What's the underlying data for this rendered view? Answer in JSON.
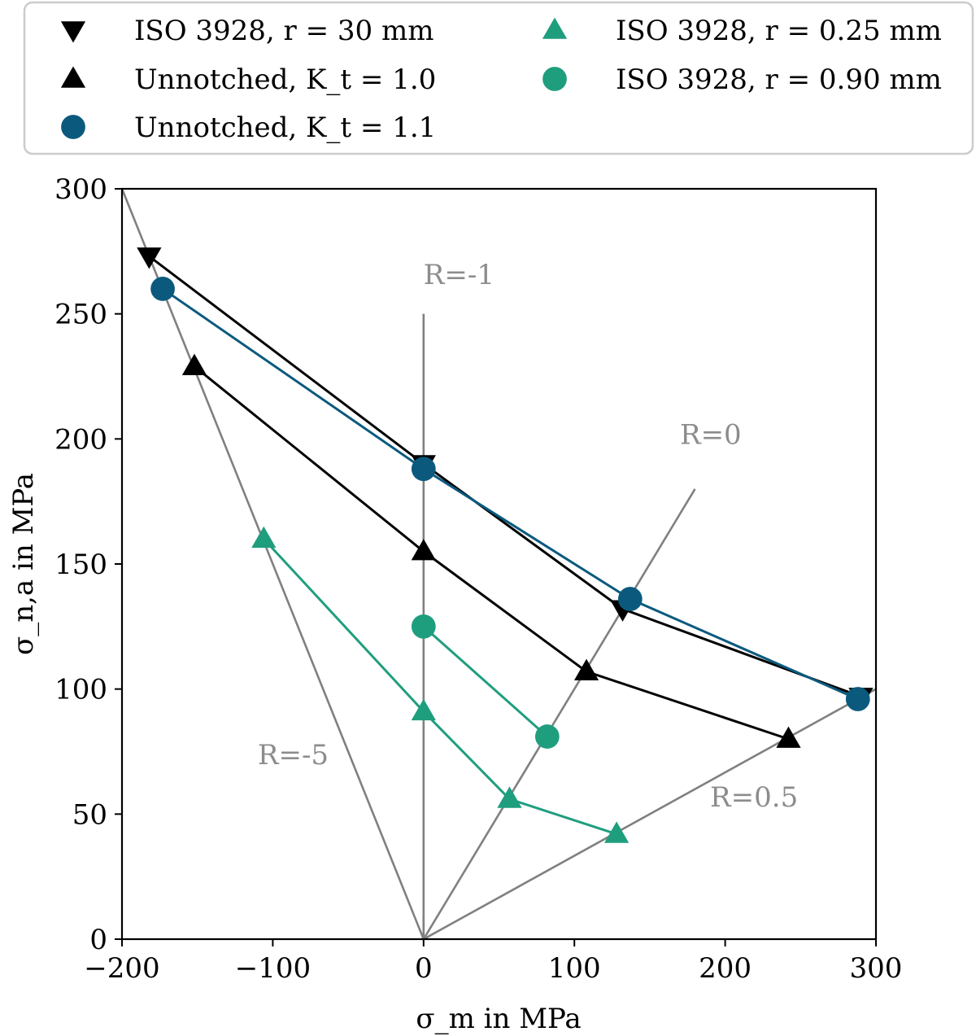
{
  "chart_data": {
    "type": "line",
    "xlabel": "σ_m in MPa",
    "ylabel": "σ_n,a in MPa",
    "xlim": [
      -200,
      300
    ],
    "ylim": [
      0,
      300
    ],
    "xticks": [
      -200,
      -100,
      0,
      100,
      200,
      300
    ],
    "yticks": [
      0,
      50,
      100,
      150,
      200,
      250,
      300
    ],
    "grid": false,
    "legend_position": "top",
    "reference_lines": [
      {
        "label": "R=-1",
        "ratio": -1,
        "x": [
          0,
          0
        ],
        "y": [
          0,
          250
        ],
        "color": "#808080"
      },
      {
        "label": "R=0",
        "ratio": 0,
        "x": [
          0,
          180
        ],
        "y": [
          0,
          180
        ],
        "color": "#808080"
      },
      {
        "label": "R=-5",
        "ratio": -5,
        "x": [
          0,
          -200
        ],
        "y": [
          0,
          300
        ],
        "color": "#808080"
      },
      {
        "label": "R=0.5",
        "ratio": 0.5,
        "x": [
          0,
          300
        ],
        "y": [
          0,
          100
        ],
        "color": "#808080"
      }
    ],
    "series": [
      {
        "name": "ISO 3928, r = 30 mm",
        "marker": "triangle-down",
        "color": "#000000",
        "x": [
          -182,
          0,
          132,
          290
        ],
        "y": [
          273,
          190,
          132,
          97
        ]
      },
      {
        "name": "Unnotched, K_t = 1.0",
        "marker": "triangle-up",
        "color": "#000000",
        "x": [
          -152,
          0,
          108,
          242
        ],
        "y": [
          229,
          155,
          107,
          80
        ]
      },
      {
        "name": "Unnotched, K_t = 1.1",
        "marker": "circle",
        "color": "#0b5a7e",
        "x": [
          -173,
          0,
          137,
          288
        ],
        "y": [
          260,
          188,
          136,
          96
        ]
      },
      {
        "name": "ISO 3928, r = 0.25 mm",
        "marker": "triangle-up",
        "color": "#1f9e7e",
        "x": [
          -106,
          0,
          57,
          128
        ],
        "y": [
          160,
          91,
          56,
          42
        ]
      },
      {
        "name": "ISO 3928, r = 0.90 mm",
        "marker": "circle",
        "color": "#1f9e7e",
        "x": [
          0,
          82
        ],
        "y": [
          125,
          81
        ]
      }
    ]
  },
  "legend": {
    "items": [
      {
        "marker": "triangle-down",
        "color": "#000000",
        "label": "ISO 3928, r = 30 mm"
      },
      {
        "marker": "triangle-up",
        "color": "#000000",
        "label": "Unnotched, K_t = 1.0"
      },
      {
        "marker": "circle",
        "color": "#0b5a7e",
        "label": "Unnotched, K_t = 1.1"
      },
      {
        "marker": "triangle-up",
        "color": "#1f9e7e",
        "label": "ISO 3928, r = 0.25 mm"
      },
      {
        "marker": "circle",
        "color": "#1f9e7e",
        "label": "ISO 3928, r = 0.90 mm"
      }
    ]
  }
}
